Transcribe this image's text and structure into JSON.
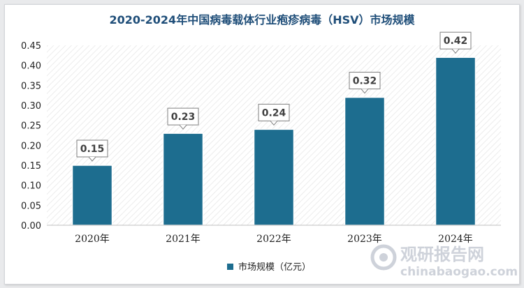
{
  "colors": {
    "bar": "#1d6d8f",
    "title": "#1f4e79",
    "label_border": "#7f7f7f",
    "hatch": "#eeeeee"
  },
  "watermark": {
    "brand_cn": "观研报告网",
    "brand_en": "chinabaogao.com"
  },
  "chart_data": {
    "type": "bar",
    "title": "2020-2024年中国病毒载体行业疱疹病毒（HSV）市场规模",
    "categories": [
      "2020年",
      "2021年",
      "2022年",
      "2023年",
      "2024年"
    ],
    "series": [
      {
        "name": "市场规模（亿元）",
        "values": [
          0.15,
          0.23,
          0.24,
          0.32,
          0.42
        ]
      }
    ],
    "value_labels": [
      "0.15",
      "0.23",
      "0.24",
      "0.32",
      "0.42"
    ],
    "yticks": [
      "0.00",
      "0.05",
      "0.10",
      "0.15",
      "0.20",
      "0.25",
      "0.30",
      "0.35",
      "0.40",
      "0.45"
    ],
    "ylim": [
      0,
      0.45
    ],
    "grid": false,
    "legend_position": "bottom-center"
  }
}
